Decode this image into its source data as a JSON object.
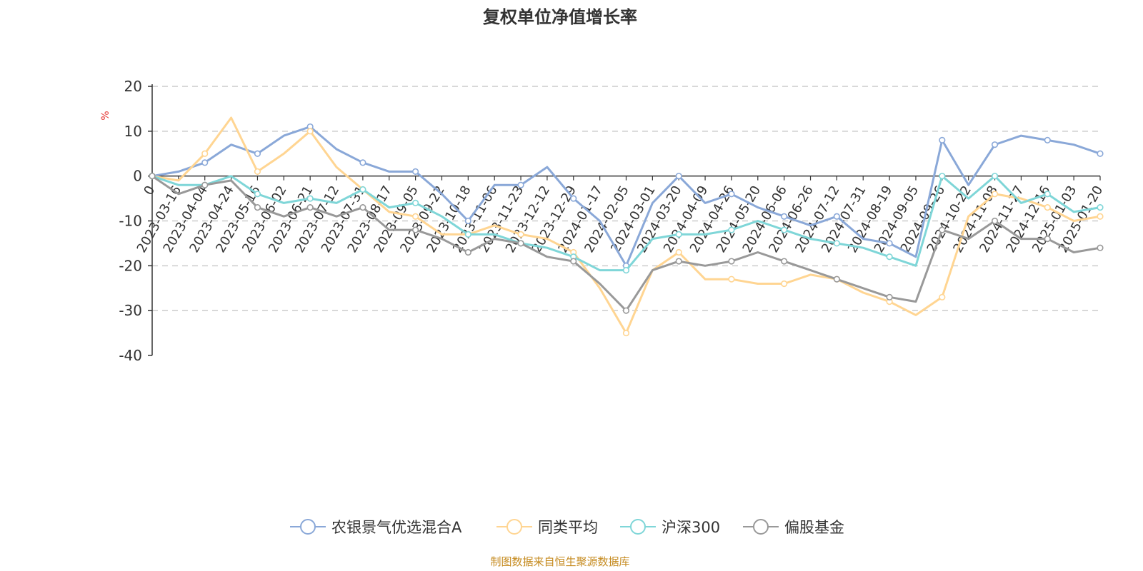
{
  "chart_data": {
    "type": "line",
    "title": "复权单位净值增长率",
    "ylabel": "%",
    "ylim": [
      -40,
      20
    ],
    "yticks": [
      "20",
      "10",
      "0",
      "-10",
      "-20",
      "-30",
      "-40"
    ],
    "grid": true,
    "legend_position": "bottom",
    "x": [
      "0",
      "2023-03-16",
      "2023-04-04",
      "2023-04-24",
      "2023-05-16",
      "2023-06-02",
      "2023-06-21",
      "2023-07-12",
      "2023-07-31",
      "2023-08-17",
      "2023-09-05",
      "2023-09-22",
      "2023-10-18",
      "2023-11-06",
      "2023-11-23",
      "2023-12-12",
      "2023-12-29",
      "2024-01-17",
      "2024-02-05",
      "2024-03-01",
      "2024-03-20",
      "2024-04-09",
      "2024-04-26",
      "2024-05-20",
      "2024-06-06",
      "2024-06-26",
      "2024-07-12",
      "2024-07-31",
      "2024-08-19",
      "2024-09-05",
      "2024-09-26",
      "2024-10-22",
      "2024-11-08",
      "2024-11-27",
      "2024-12-16",
      "2025-01-03",
      "2025-01-20"
    ],
    "series": [
      {
        "name": "农银景气优选混合A",
        "color": "#8aa8d8",
        "values": [
          0,
          1,
          3,
          7,
          5,
          9,
          11,
          6,
          3,
          1,
          1,
          -4,
          -10,
          -2,
          -2,
          2,
          -5,
          -10,
          -20,
          -6,
          0,
          -6,
          -4,
          -7,
          -9,
          -11,
          -9,
          -14,
          -15,
          -18,
          8,
          -2,
          7,
          9,
          8,
          7,
          5
        ]
      },
      {
        "name": "同类平均",
        "color": "#ffd592",
        "values": [
          0,
          -1,
          5,
          13,
          1,
          5,
          10,
          2,
          -3,
          -8,
          -9,
          -13,
          -13,
          -11,
          -13,
          -14,
          -17,
          -25,
          -35,
          -21,
          -17,
          -23,
          -23,
          -24,
          -24,
          -22,
          -23,
          -26,
          -28,
          -31,
          -27,
          -9,
          -4,
          -5,
          -7,
          -10,
          -9
        ]
      },
      {
        "name": "沪深300",
        "color": "#7fd6d8",
        "values": [
          0,
          -2,
          -2,
          0,
          -4,
          -6,
          -5,
          -6,
          -3,
          -7,
          -6,
          -9,
          -13,
          -13,
          -15,
          -16,
          -18,
          -21,
          -21,
          -14,
          -13,
          -13,
          -12,
          -10,
          -12,
          -14,
          -15,
          -16,
          -18,
          -20,
          0,
          -5,
          0,
          -6,
          -4,
          -8,
          -7
        ]
      },
      {
        "name": "偏股基金",
        "color": "#999999",
        "values": [
          0,
          -4,
          -2,
          -1,
          -7,
          -9,
          -7,
          -9,
          -7,
          -12,
          -12,
          -14,
          -17,
          -14,
          -15,
          -18,
          -19,
          -24,
          -30,
          -21,
          -19,
          -20,
          -19,
          -17,
          -19,
          -21,
          -23,
          -25,
          -27,
          -28,
          -12,
          -14,
          -10,
          -14,
          -14,
          -17,
          -16
        ]
      }
    ]
  },
  "source": "制图数据来自恒生聚源数据库"
}
